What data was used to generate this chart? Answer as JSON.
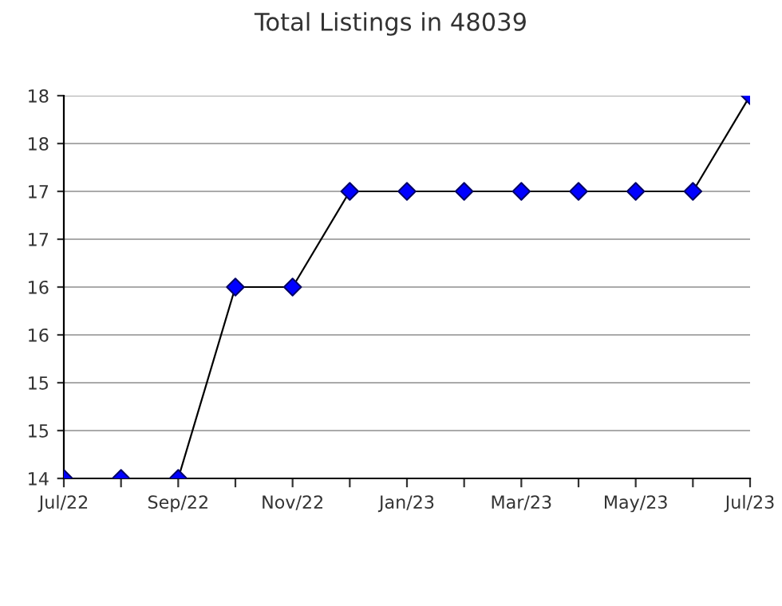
{
  "chart_data": {
    "type": "line",
    "title": "Total Listings in 48039",
    "categories": [
      "Jul/22",
      null,
      "Sep/22",
      null,
      "Nov/22",
      null,
      "Jan/23",
      null,
      "Mar/23",
      null,
      "May/23",
      null,
      "Jul/23"
    ],
    "series": [
      {
        "color": "#000000",
        "colors": [
          "#0000ff",
          "#0000ff",
          "#0000ff",
          "#0000ff",
          "#0000ff",
          "#0000ff",
          "#0000ff",
          "#0000ff",
          "#0000ff",
          "#0000ff",
          "#0000ff",
          "#0000ff",
          "#0000ff"
        ],
        "values": [
          14,
          14,
          14,
          16,
          16,
          17,
          17,
          17,
          17,
          17,
          17,
          17,
          18
        ]
      }
    ],
    "ylim": [
      14,
      18
    ],
    "yticks": [
      14,
      {
        "value": 14.5,
        "label": "15"
      },
      15,
      {
        "value": 15.5,
        "label": "16"
      },
      16,
      {
        "value": 16.5,
        "label": "17"
      },
      17,
      {
        "value": 17.5,
        "label": "18"
      },
      18
    ],
    "grid": "y",
    "marker": "diamond",
    "line_style": "solid"
  }
}
